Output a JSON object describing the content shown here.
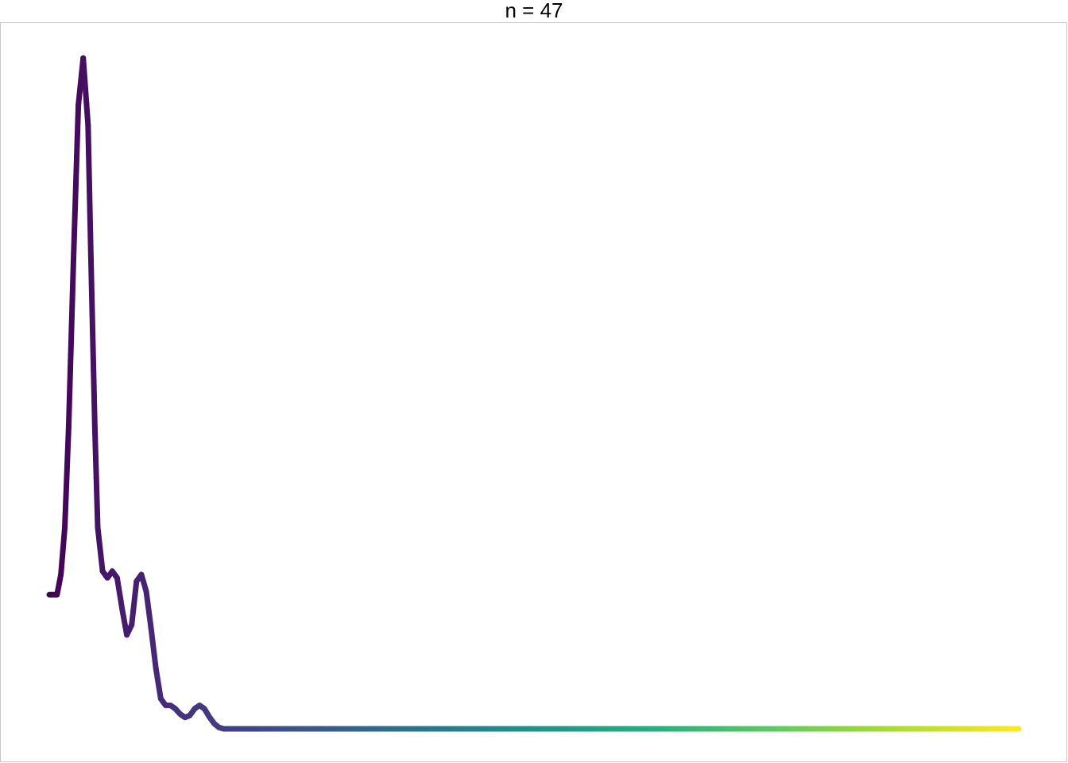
{
  "chart_data": {
    "type": "line",
    "title": "n = 47",
    "xlabel": "",
    "ylabel": "",
    "grid": false,
    "legend": "none",
    "xlim": [
      0,
      1
    ],
    "ylim": [
      0,
      1
    ],
    "color_scale": [
      "#440154",
      "#472d7b",
      "#3b528b",
      "#2c728e",
      "#21918c",
      "#28ae80",
      "#5ec962",
      "#addc30",
      "#fde725"
    ],
    "frame_color": "#c8c8c8",
    "series": [
      {
        "x": [
          0,
          0.008,
          0.012,
          0.016,
          0.02,
          0.025,
          0.03,
          0.035,
          0.04,
          0.043,
          0.047,
          0.05,
          0.055,
          0.06,
          0.065,
          0.07,
          0.075,
          0.08,
          0.085,
          0.09,
          0.095,
          0.1,
          0.105,
          0.11,
          0.115,
          0.12,
          0.125,
          0.13,
          0.135,
          0.14,
          0.145,
          0.15,
          0.155,
          0.16,
          0.165,
          0.17,
          0.175,
          0.18,
          0.185,
          0.19,
          0.2,
          0.205,
          0.21,
          0.215,
          0.22,
          0.225,
          0.23,
          0.235,
          0.24,
          0.25,
          0.26,
          0.27,
          0.28,
          0.3,
          0.4,
          0.5,
          0.6,
          0.7,
          0.8,
          0.9,
          1.0
        ],
        "y": [
          0.2,
          0.2,
          0.23,
          0.3,
          0.45,
          0.7,
          0.93,
          1.0,
          0.9,
          0.7,
          0.45,
          0.3,
          0.235,
          0.225,
          0.235,
          0.225,
          0.18,
          0.14,
          0.155,
          0.22,
          0.23,
          0.205,
          0.15,
          0.09,
          0.045,
          0.035,
          0.035,
          0.03,
          0.022,
          0.017,
          0.02,
          0.03,
          0.035,
          0.03,
          0.018,
          0.008,
          0.002,
          0,
          0,
          0,
          0,
          0,
          0,
          0,
          0,
          0,
          0,
          0,
          0,
          0,
          0,
          0,
          0,
          0,
          0,
          0,
          0,
          0,
          0,
          0,
          0
        ]
      }
    ]
  }
}
